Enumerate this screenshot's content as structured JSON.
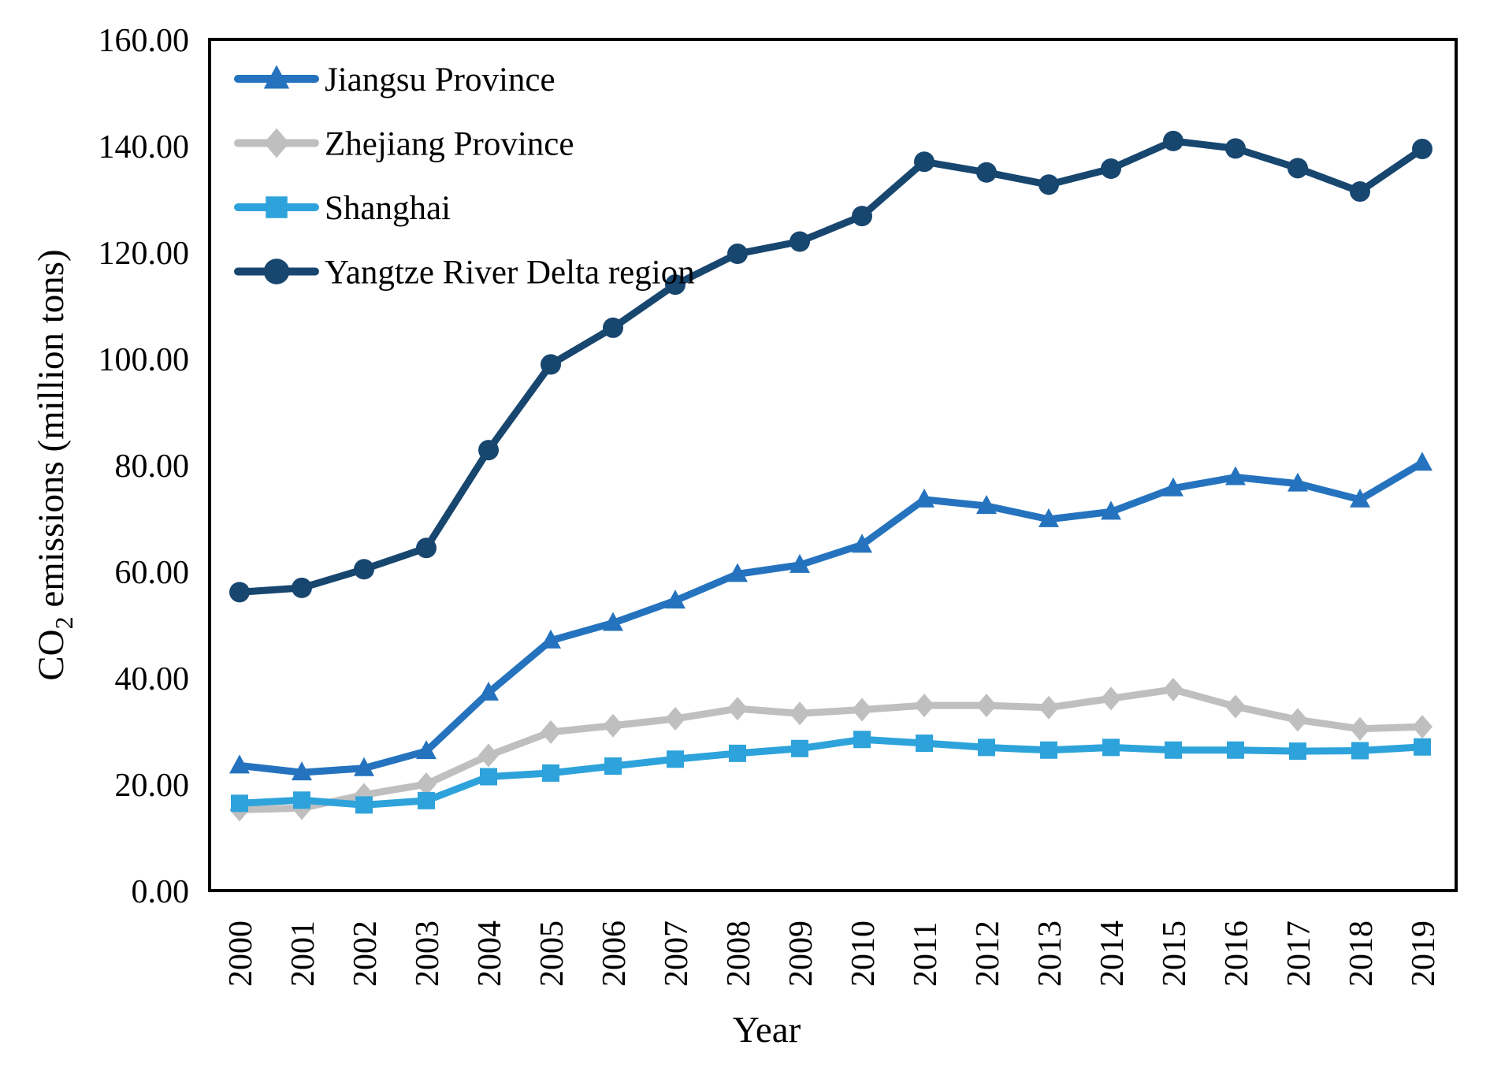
{
  "figure": {
    "background": "#FFFFFF",
    "text_color": "#000000",
    "border_color": "#000000",
    "y_axis_title": {
      "prefix": "CO",
      "subscript": "2",
      "suffix": " emissions (million tons)"
    },
    "x_axis_title": "Year"
  },
  "chart_data": {
    "type": "line",
    "title": "",
    "xlabel": "Year",
    "ylabel": "CO2 emissions (million tons)",
    "grid": false,
    "legend_position": "top-left-inside",
    "categories": [
      "2000",
      "2001",
      "2002",
      "2003",
      "2004",
      "2005",
      "2006",
      "2007",
      "2008",
      "2009",
      "2010",
      "2011",
      "2012",
      "2013",
      "2014",
      "2015",
      "2016",
      "2017",
      "2018",
      "2019"
    ],
    "y_axis": {
      "min": 0,
      "max": 160,
      "step": 20,
      "tick_labels": [
        "0.00",
        "20.00",
        "40.00",
        "60.00",
        "80.00",
        "100.00",
        "120.00",
        "140.00",
        "160.00"
      ]
    },
    "series": [
      {
        "name": "Jiangsu Province",
        "color": "#2573BE",
        "marker": "triangle",
        "values": [
          23.5,
          22.2,
          23.0,
          26.2,
          37.2,
          47.0,
          50.3,
          54.5,
          59.5,
          61.2,
          65.0,
          73.5,
          72.3,
          69.8,
          71.2,
          75.6,
          77.7,
          76.5,
          73.5,
          80.4
        ]
      },
      {
        "name": "Zhejiang Province",
        "color": "#BFBFBF",
        "marker": "diamond",
        "values": [
          15.2,
          15.5,
          18.0,
          20.0,
          25.4,
          29.8,
          31.0,
          32.3,
          34.2,
          33.3,
          34.0,
          34.8,
          34.8,
          34.4,
          36.1,
          37.8,
          34.6,
          32.1,
          30.4,
          30.8
        ]
      },
      {
        "name": "Shanghai",
        "color": "#2EA3DB",
        "marker": "square",
        "values": [
          16.4,
          17.0,
          16.1,
          16.9,
          21.4,
          22.1,
          23.4,
          24.7,
          25.8,
          26.7,
          28.4,
          27.7,
          26.9,
          26.4,
          26.9,
          26.4,
          26.4,
          26.2,
          26.3,
          27.0
        ]
      },
      {
        "name": "Yangtze River Delta region",
        "color": "#17466F",
        "marker": "circle",
        "values": [
          56.1,
          56.9,
          60.4,
          64.4,
          82.8,
          98.9,
          105.8,
          113.9,
          119.7,
          122.0,
          126.8,
          137.0,
          135.0,
          132.7,
          135.7,
          140.9,
          139.5,
          135.8,
          131.4,
          139.4
        ]
      }
    ]
  }
}
